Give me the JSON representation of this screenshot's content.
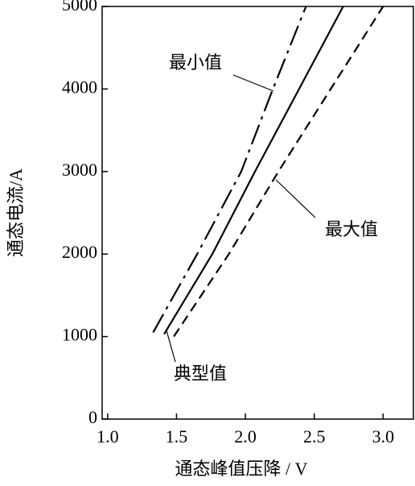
{
  "chart_data": {
    "type": "line",
    "x_label": "通态峰值压降 / V",
    "y_label": "通态电流/A",
    "xlim": [
      0.96,
      3.22
    ],
    "ylim": [
      0,
      5000
    ],
    "xticks": [
      {
        "value": 1,
        "label": "1.0"
      },
      1.5,
      {
        "value": 2,
        "label": "2.0"
      },
      2.5,
      {
        "value": 3,
        "label": "3.0"
      }
    ],
    "yticks": [
      0,
      1000,
      2000,
      3000,
      4000,
      5000
    ],
    "series": [
      {
        "name": "最小值",
        "color": "#000000",
        "dash": "dash-dot",
        "x": [
          1.33,
          1.65,
          1.97,
          2.2,
          2.44
        ],
        "values": [
          1050,
          2000,
          3000,
          4000,
          5000
        ]
      },
      {
        "name": "典型值",
        "color": "#000000",
        "dash": "solid",
        "x": [
          1.41,
          1.76,
          2.07,
          2.39,
          2.71
        ],
        "values": [
          1030,
          2000,
          3000,
          4000,
          5000
        ]
      },
      {
        "name": "最大值",
        "color": "#000000",
        "dash": "dashed",
        "x": [
          1.48,
          1.88,
          2.24,
          2.62,
          3.0
        ],
        "values": [
          1000,
          2000,
          3000,
          4000,
          5000
        ]
      }
    ]
  }
}
